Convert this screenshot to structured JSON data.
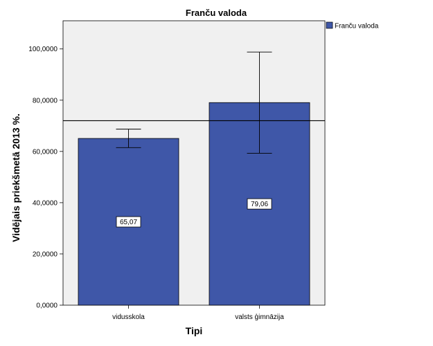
{
  "chart_data": {
    "type": "bar",
    "title": "Franču valoda",
    "xlabel": "Tipi",
    "ylabel": "Vidējais priekšmetā 2013 %.",
    "categories": [
      "vidusskola",
      "valsts ģimnāzija"
    ],
    "series": [
      {
        "name": "Franču valoda",
        "values": [
          65.07,
          79.06
        ],
        "value_labels": [
          "65,07",
          "79,06"
        ],
        "error_low": [
          61.5,
          59.3
        ],
        "error_high": [
          68.7,
          98.8
        ],
        "color": "#3f57a8"
      }
    ],
    "reference_line": 72.0,
    "ylim": [
      0,
      111
    ],
    "y_ticks": [
      0,
      20,
      40,
      60,
      80,
      100
    ],
    "y_tick_labels": [
      "0,0000",
      "20,0000",
      "40,0000",
      "60,0000",
      "80,0000",
      "100,0000"
    ],
    "grid": false,
    "plot_background": "#f0f0f0",
    "legend_position": "top-right"
  }
}
